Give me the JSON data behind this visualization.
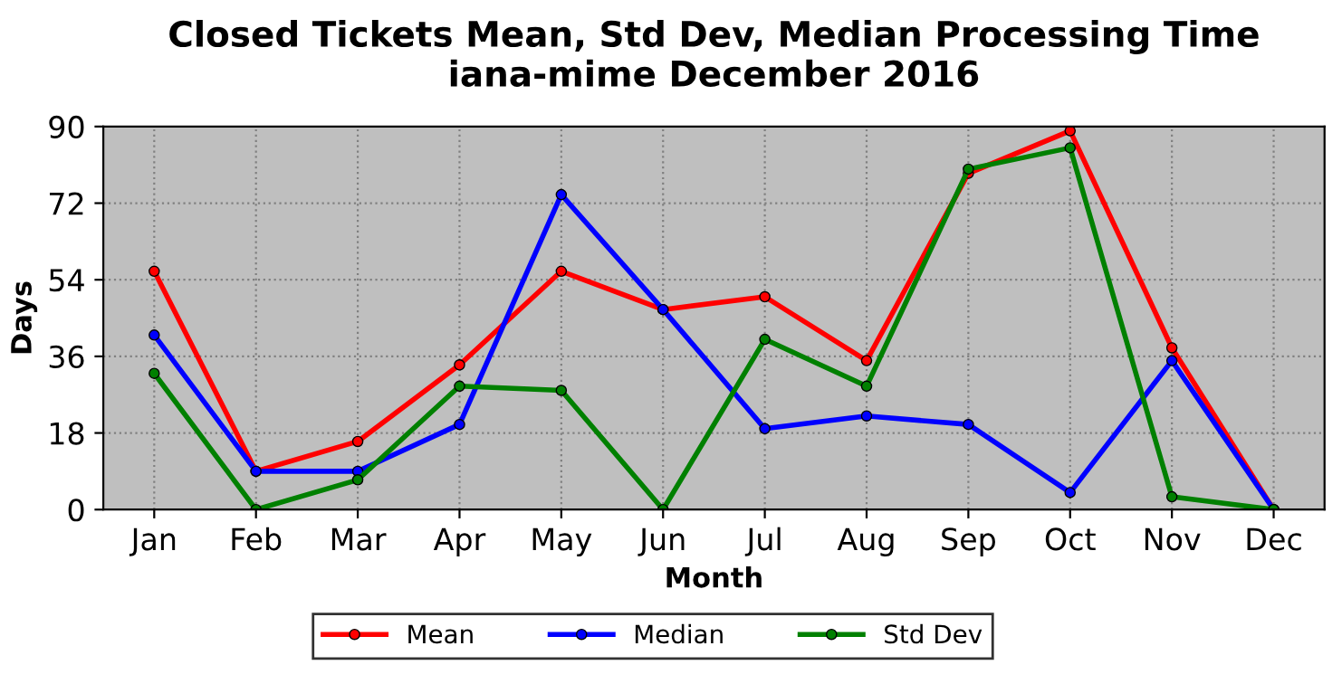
{
  "chart_data": {
    "type": "line",
    "title": "Closed Tickets Mean, Std Dev, Median Processing Time\niana-mime December 2016",
    "xlabel": "Month",
    "ylabel": "Days",
    "categories": [
      "Jan",
      "Feb",
      "Mar",
      "Apr",
      "May",
      "Jun",
      "Jul",
      "Aug",
      "Sep",
      "Oct",
      "Nov",
      "Dec"
    ],
    "series": [
      {
        "name": "Mean",
        "color": "#ff0000",
        "values": [
          56,
          9,
          16,
          34,
          56,
          47,
          50,
          35,
          79,
          89,
          38,
          0
        ]
      },
      {
        "name": "Median",
        "color": "#0000ff",
        "values": [
          41,
          9,
          9,
          20,
          74,
          47,
          19,
          22,
          20,
          4,
          35,
          0
        ]
      },
      {
        "name": "Std Dev",
        "color": "#008000",
        "values": [
          32,
          0,
          7,
          29,
          28,
          0,
          40,
          29,
          80,
          85,
          3,
          0
        ]
      }
    ],
    "ylim": [
      0,
      90
    ],
    "yticks": [
      0,
      18,
      36,
      54,
      72,
      90
    ],
    "grid": true,
    "legend": "bottom",
    "marker": "circle",
    "line_style": "solid"
  }
}
